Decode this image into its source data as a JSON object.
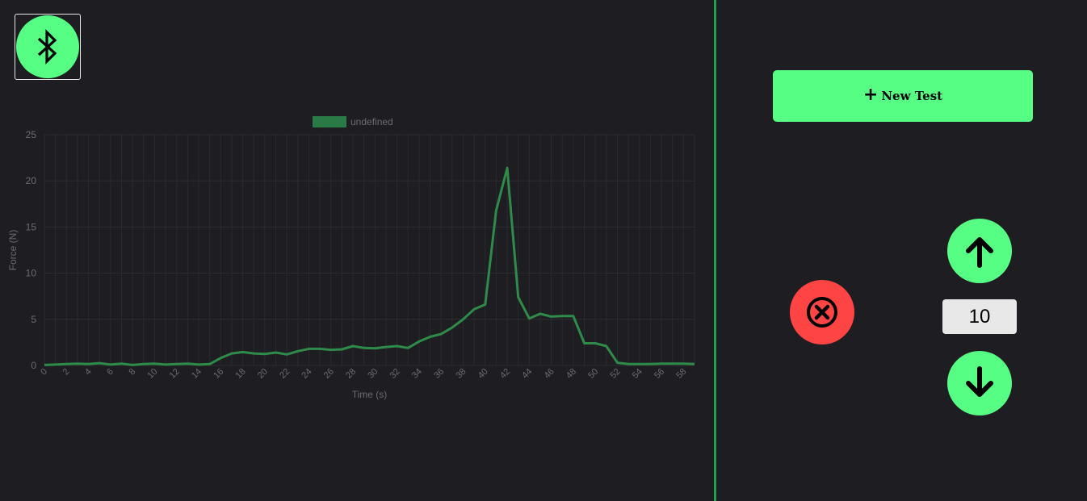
{
  "connection": {
    "bluetooth_icon": "bluetooth-icon"
  },
  "controls": {
    "new_test_label": "New Test",
    "new_test_icon": "plus-icon",
    "cancel_icon": "close-circle-icon",
    "up_icon": "arrow-up-icon",
    "down_icon": "arrow-down-icon",
    "step_value": "10"
  },
  "colors": {
    "background": "#1e1e22",
    "accent": "#56ff84",
    "divider": "#1fa34a",
    "danger": "#ff4444",
    "series_line": "#2e8b4a",
    "legend_box": "#2a7a45"
  },
  "chart_data": {
    "type": "line",
    "xlabel": "Time (s)",
    "ylabel": "Force (N)",
    "legend_position": "top",
    "grid": true,
    "ylim": [
      0,
      25
    ],
    "yticks": [
      "0",
      "5",
      "10",
      "15",
      "20",
      "25"
    ],
    "xticks": [
      "0",
      "2",
      "4",
      "6",
      "8",
      "10",
      "12",
      "14",
      "16",
      "18",
      "20",
      "22",
      "24",
      "26",
      "28",
      "30",
      "32",
      "34",
      "36",
      "38",
      "40",
      "42",
      "44",
      "46",
      "48",
      "50",
      "52",
      "54",
      "56",
      "58"
    ],
    "series": [
      {
        "name": "undefined",
        "x": [
          0,
          1,
          2,
          3,
          4,
          5,
          6,
          7,
          8,
          9,
          10,
          11,
          12,
          13,
          14,
          15,
          16,
          17,
          18,
          19,
          20,
          21,
          22,
          23,
          24,
          25,
          26,
          27,
          28,
          29,
          30,
          31,
          32,
          33,
          34,
          35,
          36,
          37,
          38,
          39,
          40,
          41,
          42,
          43,
          44,
          45,
          46,
          47,
          48,
          49,
          50,
          51,
          52,
          53,
          54,
          55,
          56,
          57,
          58,
          59
        ],
        "values": [
          0.05,
          0.1,
          0.15,
          0.2,
          0.15,
          0.25,
          0.1,
          0.2,
          0.05,
          0.15,
          0.2,
          0.1,
          0.15,
          0.2,
          0.1,
          0.15,
          0.8,
          1.3,
          1.45,
          1.3,
          1.25,
          1.4,
          1.2,
          1.55,
          1.8,
          1.8,
          1.7,
          1.75,
          2.1,
          1.9,
          1.85,
          2.0,
          2.1,
          1.9,
          2.6,
          3.1,
          3.4,
          4.1,
          5.0,
          6.1,
          6.6,
          16.8,
          21.4,
          7.4,
          5.1,
          5.6,
          5.3,
          5.35,
          5.35,
          2.4,
          2.4,
          2.1,
          0.3,
          0.15,
          0.15,
          0.15,
          0.2,
          0.2,
          0.2,
          0.15
        ]
      }
    ]
  }
}
